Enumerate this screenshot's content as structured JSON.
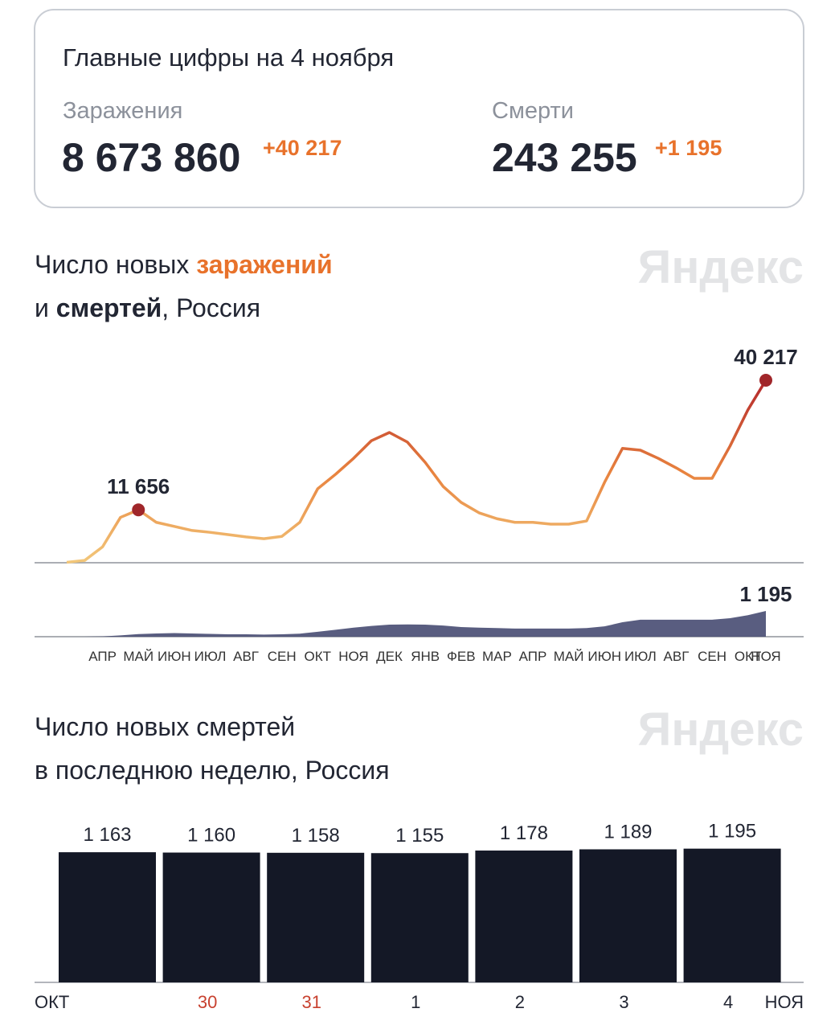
{
  "summary": {
    "title": "Главные цифры на 4 ноября",
    "cases": {
      "label": "Заражения",
      "value": "8 673 860",
      "delta": "+40 217"
    },
    "deaths": {
      "label": "Смерти",
      "value": "243 255",
      "delta": "+1 195"
    }
  },
  "chart_data": [
    {
      "type": "line",
      "title_lines": [
        [
          {
            "text": "Число новых ",
            "bold": false
          },
          {
            "text": "заражений",
            "bold": true,
            "color": "#e8722b"
          }
        ],
        [
          {
            "text": "и ",
            "bold": false
          },
          {
            "text": "смертей",
            "bold": true
          },
          {
            "text": ", Россия",
            "bold": false
          }
        ]
      ],
      "watermark": "Яндекс",
      "categories": [
        null,
        null,
        "АПР",
        null,
        "МАЙ",
        null,
        "ИЮН",
        null,
        "ИЮЛ",
        null,
        "АВГ",
        null,
        "СЕН",
        null,
        "ОКТ",
        null,
        "НОЯ",
        null,
        "ДЕК",
        null,
        "ЯНВ",
        null,
        "ФЕВ",
        null,
        "МАР",
        null,
        "АПР",
        null,
        "МАЙ",
        null,
        "ИЮН",
        null,
        "ИЮЛ",
        null,
        "АВГ",
        null,
        "СЕН",
        null,
        "ОКТ",
        "НОЯ"
      ],
      "series": [
        {
          "color_scale": [
            "#f2c77a",
            "#e8823e",
            "#b3262b"
          ],
          "marker_color": "#a0262a",
          "values": [
            100,
            500,
            3500,
            10000,
            11656,
            8900,
            8000,
            7100,
            6700,
            6200,
            5700,
            5300,
            5800,
            8900,
            16300,
            19500,
            23000,
            26900,
            28700,
            26600,
            22100,
            16800,
            13300,
            11000,
            9700,
            8900,
            8900,
            8500,
            8500,
            9200,
            17700,
            25200,
            24800,
            23000,
            20900,
            18600,
            18600,
            25700,
            33700,
            40217
          ],
          "value_labels": [
            null,
            null,
            null,
            null,
            "11 656",
            null,
            null,
            null,
            null,
            null,
            null,
            null,
            null,
            null,
            null,
            null,
            null,
            null,
            null,
            null,
            null,
            null,
            null,
            null,
            null,
            null,
            null,
            null,
            null,
            null,
            null,
            null,
            null,
            null,
            null,
            null,
            null,
            null,
            null,
            "40 217"
          ]
        },
        {
          "type": "area",
          "color": "#474b72",
          "values": [
            0,
            1,
            15,
            60,
            120,
            150,
            170,
            150,
            130,
            110,
            110,
            100,
            110,
            140,
            230,
            320,
            420,
            500,
            560,
            570,
            560,
            520,
            450,
            420,
            400,
            380,
            380,
            380,
            380,
            400,
            480,
            670,
            790,
            790,
            790,
            790,
            790,
            860,
            1000,
            1195
          ],
          "value_labels": [
            null,
            null,
            null,
            null,
            null,
            null,
            null,
            null,
            null,
            null,
            null,
            null,
            null,
            null,
            null,
            null,
            null,
            null,
            null,
            null,
            null,
            null,
            null,
            null,
            null,
            null,
            null,
            null,
            null,
            null,
            null,
            null,
            null,
            null,
            null,
            null,
            null,
            null,
            null,
            "1 195"
          ]
        }
      ]
    },
    {
      "type": "bar",
      "title_lines": [
        "Число новых смертей",
        "в последнюю неделю, Россия"
      ],
      "watermark": "Яндекс",
      "categories": [
        null,
        "30",
        "31",
        "1",
        "2",
        "3",
        "4"
      ],
      "label_colors": [
        "#222633",
        "#c8412f",
        "#c8412f",
        "#222633",
        "#222633",
        "#222633",
        "#222633"
      ],
      "axis_start_label": "ОКТ",
      "axis_end_label": "НОЯ",
      "color": "#141826",
      "values": [
        1163,
        1160,
        1158,
        1155,
        1178,
        1189,
        1195
      ],
      "value_labels": [
        "1 163",
        "1 160",
        "1 158",
        "1 155",
        "1 178",
        "1 189",
        "1 195"
      ],
      "ylim": [
        0,
        1250
      ]
    }
  ]
}
